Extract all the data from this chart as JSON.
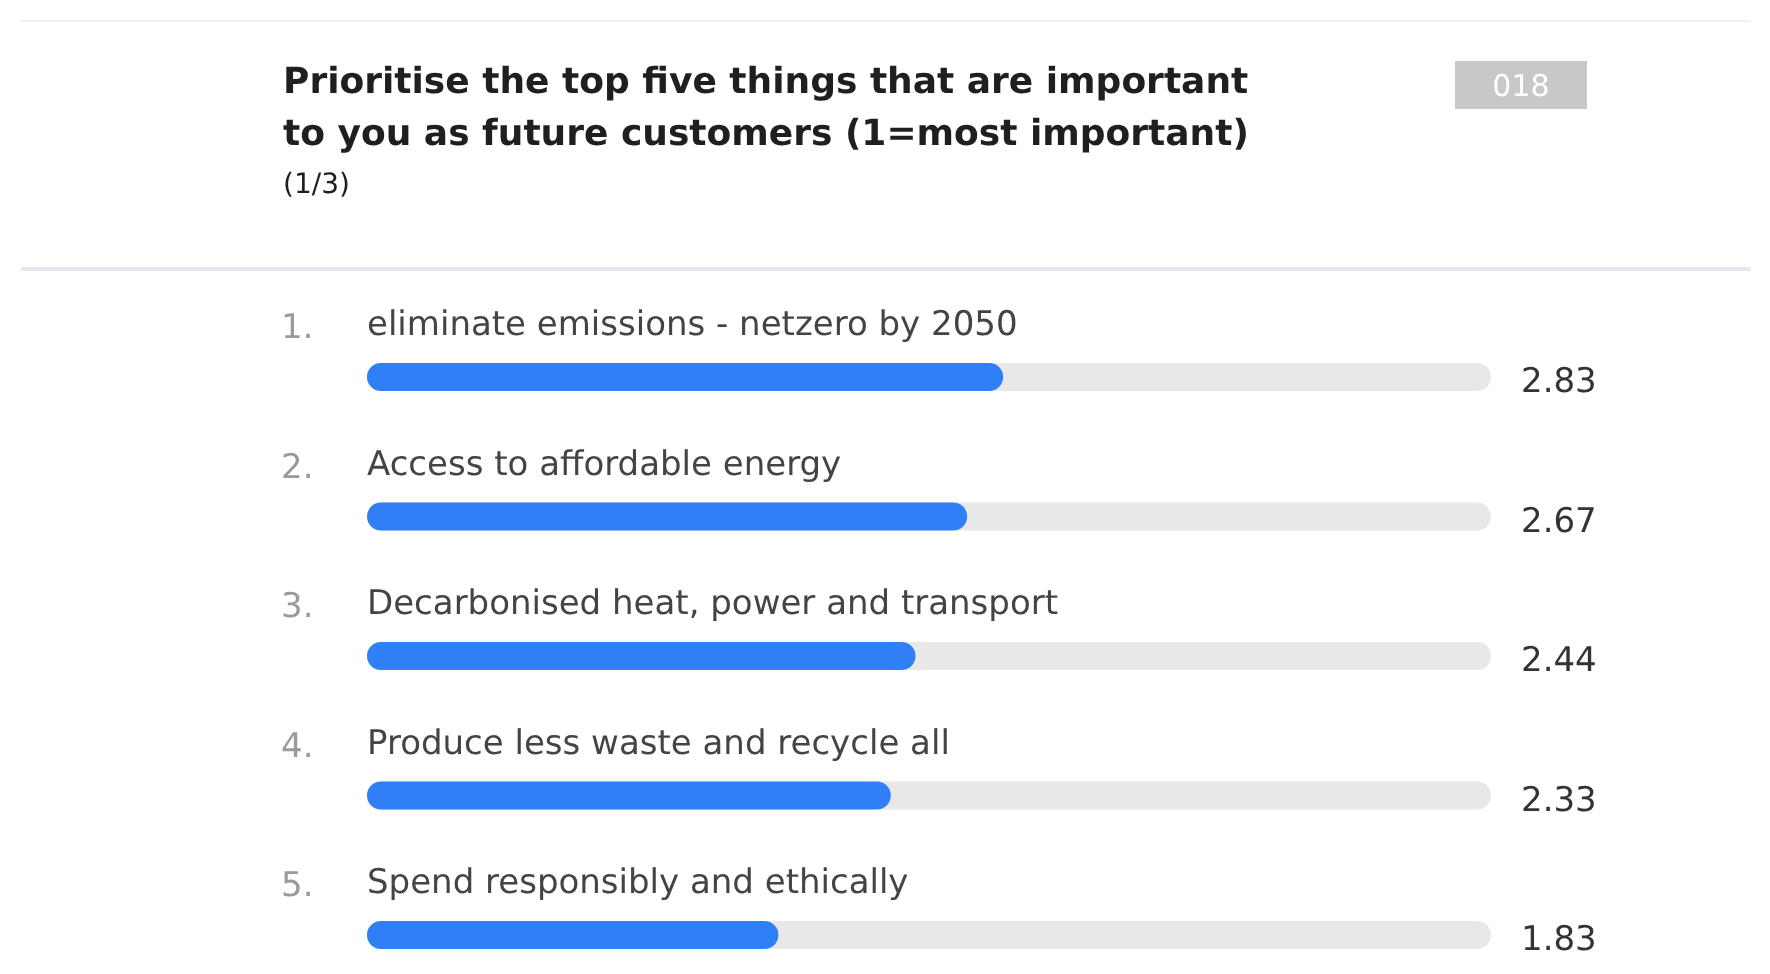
{
  "chart_data": {
    "type": "bar",
    "orientation": "horizontal",
    "title": "Prioritise the top five things that are important to you as future customers (1=most important)",
    "subtitle": "(1/3)",
    "annotations": [
      "018"
    ],
    "categories": [
      "1. eliminate emissions - netzero by 2050",
      "2. Access to affordable energy",
      "3. Decarbonised heat, power and transport",
      "4. Produce less waste and recycle all",
      "5. Spend responsibly and ethically"
    ],
    "values": [
      2.83,
      2.67,
      2.44,
      2.33,
      1.83
    ],
    "color": "#2f80f7",
    "data_labels": true
  }
}
